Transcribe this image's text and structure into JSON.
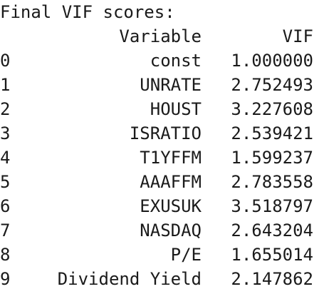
{
  "title": "Final VIF scores:",
  "table": {
    "index_header": "",
    "headers": [
      "Variable",
      "VIF"
    ],
    "rows": [
      {
        "index": "0",
        "variable": "const",
        "vif": "1.000000"
      },
      {
        "index": "1",
        "variable": "UNRATE",
        "vif": "2.752493"
      },
      {
        "index": "2",
        "variable": "HOUST",
        "vif": "3.227608"
      },
      {
        "index": "3",
        "variable": "ISRATIO",
        "vif": "2.539421"
      },
      {
        "index": "4",
        "variable": "T1YFFM",
        "vif": "1.599237"
      },
      {
        "index": "5",
        "variable": "AAAFFM",
        "vif": "2.783558"
      },
      {
        "index": "6",
        "variable": "EXUSUK",
        "vif": "3.518797"
      },
      {
        "index": "7",
        "variable": "NASDAQ",
        "vif": "2.643204"
      },
      {
        "index": "8",
        "variable": "P/E",
        "vif": "1.655014"
      },
      {
        "index": "9",
        "variable": "Dividend Yield",
        "vif": "2.147862"
      }
    ]
  }
}
